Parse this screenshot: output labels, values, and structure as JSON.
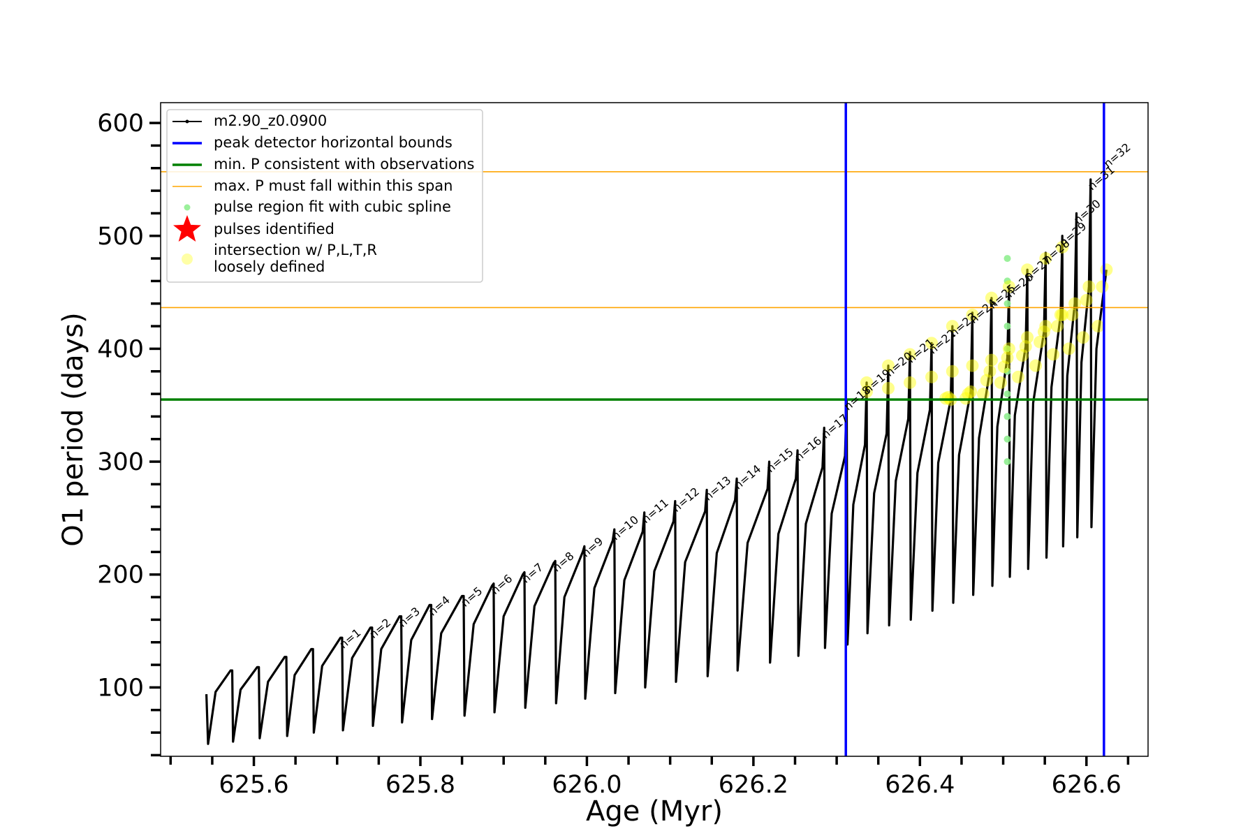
{
  "chart_data": {
    "type": "line",
    "xlabel": "Age (Myr)",
    "ylabel": "O1 period (days)",
    "xlim": [
      625.488,
      626.674
    ],
    "ylim": [
      39,
      618
    ],
    "xticks": [
      625.6,
      625.8,
      {
        "value": 626,
        "label": "626.0"
      },
      626.2,
      626.4,
      626.6
    ],
    "xticks_minor": [
      625.5,
      625.55,
      625.65,
      625.7,
      625.75,
      625.85,
      625.9,
      625.95,
      626.05,
      626.1,
      626.15,
      626.25,
      626.3,
      626.35,
      626.45,
      626.5,
      626.55,
      626.65
    ],
    "yticks": [
      100,
      200,
      300,
      400,
      500,
      600
    ],
    "yticks_minor": [
      40,
      60,
      80,
      120,
      140,
      160,
      180,
      220,
      240,
      260,
      280,
      320,
      340,
      360,
      380,
      420,
      440,
      460,
      480,
      520,
      540,
      560,
      580
    ],
    "legend": "upper left",
    "series": [
      {
        "name": "m2.90_z0.0900",
        "type": "line",
        "color": "#000000",
        "x": [
          625.543,
          625.545,
          625.554,
          625.572,
          625.574,
          625.575,
          625.584,
          625.604,
          625.606,
          625.607,
          625.617,
          625.637,
          625.639,
          625.64,
          625.649,
          625.669,
          625.671,
          625.672,
          625.682,
          625.704,
          625.706,
          625.707,
          625.718,
          625.74,
          625.742,
          625.743,
          625.753,
          625.775,
          625.777,
          625.778,
          625.789,
          625.811,
          625.813,
          625.814,
          625.825,
          625.85,
          625.852,
          625.853,
          625.864,
          625.886,
          625.888,
          625.889,
          625.9,
          625.923,
          625.925,
          625.926,
          625.937,
          625.96,
          625.962,
          625.963,
          625.973,
          625.995,
          625.997,
          625.998,
          626.009,
          626.031,
          626.033,
          626.034,
          626.045,
          626.067,
          626.069,
          626.07,
          626.081,
          626.104,
          626.106,
          626.107,
          626.118,
          626.142,
          626.144,
          626.145,
          626.156,
          626.178,
          626.18,
          626.181,
          626.193,
          626.217,
          626.219,
          626.22,
          626.23,
          626.251,
          626.253,
          626.254,
          626.263,
          626.283,
          626.285,
          626.286,
          626.294,
          626.31,
          626.312,
          626.313,
          626.32,
          626.334,
          626.336,
          626.337,
          626.345,
          626.36,
          626.362,
          626.363,
          626.371,
          626.386,
          626.388,
          626.389,
          626.397,
          626.412,
          626.414,
          626.415,
          626.422,
          626.437,
          626.439,
          626.44,
          626.447,
          626.461,
          626.463,
          626.464,
          626.471,
          626.484,
          626.486,
          626.487,
          626.493,
          626.505,
          626.507,
          626.508,
          626.514,
          626.527,
          626.529,
          626.53,
          626.536,
          626.549,
          626.551,
          626.552,
          626.558,
          626.569,
          626.571,
          626.572,
          626.577,
          626.586,
          626.588,
          626.589,
          626.594,
          626.603,
          626.605,
          626.606,
          626.612,
          626.624
        ],
        "values": [
          94,
          50,
          96,
          115,
          115,
          52,
          98,
          118,
          118,
          55,
          105,
          127,
          127,
          57,
          111,
          134,
          134,
          60,
          119,
          144,
          144,
          62,
          126,
          153,
          153,
          66,
          134,
          163,
          163,
          69,
          142,
          173,
          173,
          72,
          148,
          181,
          181,
          75,
          156,
          190,
          192,
          78,
          163,
          200,
          202,
          82,
          172,
          210,
          212,
          86,
          180,
          220,
          225,
          90,
          188,
          230,
          240,
          95,
          195,
          238,
          255,
          100,
          203,
          247,
          265,
          105,
          211,
          256,
          275,
          110,
          219,
          266,
          285,
          115,
          228,
          276,
          300,
          122,
          236,
          285,
          310,
          128,
          245,
          295,
          330,
          135,
          254,
          305,
          355,
          138,
          262,
          315,
          370,
          148,
          272,
          325,
          385,
          155,
          283,
          338,
          397,
          160,
          290,
          346,
          405,
          168,
          299,
          355,
          420,
          175,
          306,
          362,
          432,
          182,
          321,
          380,
          445,
          190,
          331,
          392,
          455,
          198,
          341,
          402,
          470,
          205,
          352,
          415,
          485,
          215,
          366,
          430,
          500,
          225,
          376,
          440,
          520,
          233,
          388,
          455,
          550,
          242,
          400,
          470
        ]
      },
      {
        "name": "peak detector horizontal bounds",
        "type": "vline",
        "color": "#0000ff",
        "x": [
          626.311,
          626.621
        ]
      },
      {
        "name": "min. P consistent with observations",
        "type": "hline",
        "color": "#008000",
        "values": [
          355
        ]
      },
      {
        "name": "max. P must fall within this span",
        "type": "hline",
        "color": "#ffa500",
        "values": [
          436.5,
          556.8
        ]
      },
      {
        "name": "pulse region fit with cubic spline",
        "type": "scatter",
        "color": "#90ee90",
        "x": [
          626.505,
          626.505,
          626.505,
          626.505,
          626.505,
          626.505,
          626.505,
          626.505,
          626.505,
          626.505
        ],
        "values": [
          300,
          320,
          340,
          360,
          380,
          400,
          420,
          440,
          460,
          480
        ]
      },
      {
        "name": "pulses identified",
        "type": "star",
        "color": "#ff0000",
        "x": [],
        "values": []
      },
      {
        "name": "intersection w/ P,L,T,R\nloosely defined",
        "type": "scatter",
        "color": "#ffff00",
        "x": [
          626.431,
          626.434,
          626.437,
          626.455,
          626.458,
          626.461,
          626.476,
          626.48,
          626.484,
          626.497,
          626.501,
          626.505,
          626.518,
          626.523,
          626.527,
          626.539,
          626.544,
          626.549,
          626.56,
          626.565,
          626.569,
          626.579,
          626.583,
          626.586,
          626.596,
          626.6,
          626.603,
          626.614,
          626.619,
          626.624,
          626.336,
          626.336,
          626.362,
          626.362,
          626.388,
          626.388,
          626.414,
          626.414,
          626.439,
          626.439,
          626.463,
          626.463,
          626.486,
          626.486,
          626.507,
          626.507,
          626.529,
          626.529,
          626.551,
          626.551,
          626.571,
          626.571
        ],
        "values": [
          356,
          357,
          355,
          356,
          360,
          362,
          360,
          372,
          380,
          370,
          384,
          392,
          375,
          394,
          402,
          385,
          406,
          415,
          395,
          420,
          430,
          400,
          430,
          440,
          410,
          443,
          455,
          420,
          455,
          470,
          362,
          370,
          365,
          385,
          370,
          395,
          375,
          405,
          380,
          420,
          385,
          430,
          390,
          445,
          400,
          455,
          410,
          470,
          420,
          480,
          430,
          490
        ]
      }
    ],
    "annotations": [
      {
        "text": "n=1",
        "x": 625.706,
        "y": 134
      },
      {
        "text": "n=2",
        "x": 625.742,
        "y": 143
      },
      {
        "text": "n=3",
        "x": 625.777,
        "y": 153
      },
      {
        "text": "n=4",
        "x": 625.813,
        "y": 163
      },
      {
        "text": "n=5",
        "x": 625.852,
        "y": 171
      },
      {
        "text": "n=6",
        "x": 625.888,
        "y": 182
      },
      {
        "text": "n=7",
        "x": 625.925,
        "y": 192
      },
      {
        "text": "n=8",
        "x": 625.962,
        "y": 202
      },
      {
        "text": "n=9",
        "x": 625.997,
        "y": 215
      },
      {
        "text": "n=10",
        "x": 626.033,
        "y": 230
      },
      {
        "text": "n=11",
        "x": 626.069,
        "y": 245
      },
      {
        "text": "n=12",
        "x": 626.106,
        "y": 255
      },
      {
        "text": "n=13",
        "x": 626.144,
        "y": 265
      },
      {
        "text": "n=14",
        "x": 626.18,
        "y": 275
      },
      {
        "text": "n=15",
        "x": 626.219,
        "y": 290
      },
      {
        "text": "n=16",
        "x": 626.253,
        "y": 300
      },
      {
        "text": "n=17",
        "x": 626.285,
        "y": 320
      },
      {
        "text": "n=18",
        "x": 626.312,
        "y": 345
      },
      {
        "text": "n=19",
        "x": 626.336,
        "y": 360
      },
      {
        "text": "n=20",
        "x": 626.362,
        "y": 375
      },
      {
        "text": "n=21",
        "x": 626.388,
        "y": 387
      },
      {
        "text": "n=22",
        "x": 626.414,
        "y": 395
      },
      {
        "text": "n=23",
        "x": 626.439,
        "y": 410
      },
      {
        "text": "n=24",
        "x": 626.463,
        "y": 422
      },
      {
        "text": "n=25",
        "x": 626.486,
        "y": 435
      },
      {
        "text": "n=26",
        "x": 626.507,
        "y": 445
      },
      {
        "text": "n=27",
        "x": 626.529,
        "y": 460
      },
      {
        "text": "n=28",
        "x": 626.551,
        "y": 475
      },
      {
        "text": "n=29",
        "x": 626.571,
        "y": 490
      },
      {
        "text": "n=30",
        "x": 626.588,
        "y": 510
      },
      {
        "text": "n=31",
        "x": 626.605,
        "y": 540
      },
      {
        "text": "n=32",
        "x": 626.624,
        "y": 560
      }
    ]
  }
}
